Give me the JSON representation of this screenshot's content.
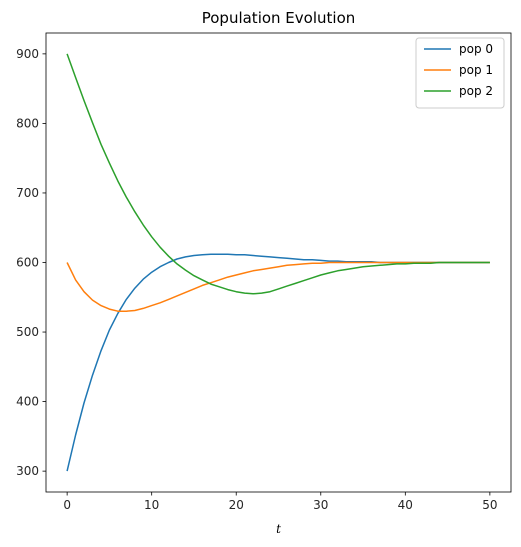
{
  "chart_data": {
    "type": "line",
    "title": "Population Evolution",
    "xlabel": "t",
    "ylabel": "",
    "xlim": [
      -2.5,
      52.5
    ],
    "ylim": [
      270,
      930
    ],
    "xticks": [
      0,
      10,
      20,
      30,
      40,
      50
    ],
    "yticks": [
      300,
      400,
      500,
      600,
      700,
      800,
      900
    ],
    "grid": false,
    "legend_position": "top-right",
    "series": [
      {
        "name": "pop 0",
        "color": "#1f77b4",
        "x": [
          0,
          1,
          2,
          3,
          4,
          5,
          6,
          7,
          8,
          9,
          10,
          11,
          12,
          13,
          14,
          15,
          16,
          17,
          18,
          19,
          20,
          21,
          22,
          23,
          24,
          25,
          26,
          27,
          28,
          29,
          30,
          31,
          32,
          33,
          34,
          35,
          36,
          37,
          38,
          39,
          40,
          41,
          42,
          43,
          44,
          45,
          46,
          47,
          48,
          49,
          50
        ],
        "y": [
          300,
          352,
          398,
          438,
          473,
          503,
          527,
          547,
          563,
          576,
          586,
          594,
          600,
          605,
          608,
          610,
          611,
          612,
          612,
          612,
          611,
          611,
          610,
          609,
          608,
          607,
          606,
          605,
          604,
          604,
          603,
          602,
          602,
          601,
          601,
          601,
          601,
          600,
          600,
          600,
          600,
          600,
          600,
          600,
          600,
          600,
          600,
          600,
          600,
          600,
          600
        ]
      },
      {
        "name": "pop 1",
        "color": "#ff7f0e",
        "x": [
          0,
          1,
          2,
          3,
          4,
          5,
          6,
          7,
          8,
          9,
          10,
          11,
          12,
          13,
          14,
          15,
          16,
          17,
          18,
          19,
          20,
          21,
          22,
          23,
          24,
          25,
          26,
          27,
          28,
          29,
          30,
          31,
          32,
          33,
          34,
          35,
          36,
          37,
          38,
          39,
          40,
          41,
          42,
          43,
          44,
          45,
          46,
          47,
          48,
          49,
          50
        ],
        "y": [
          600,
          575,
          558,
          546,
          538,
          533,
          530,
          530,
          531,
          534,
          538,
          542,
          547,
          552,
          557,
          562,
          567,
          571,
          575,
          579,
          582,
          585,
          588,
          590,
          592,
          594,
          596,
          597,
          598,
          599,
          599,
          600,
          600,
          600,
          600,
          600,
          600,
          600,
          600,
          600,
          600,
          600,
          600,
          600,
          600,
          600,
          600,
          600,
          600,
          600,
          600
        ]
      },
      {
        "name": "pop 2",
        "color": "#2ca02c",
        "x": [
          0,
          1,
          2,
          3,
          4,
          5,
          6,
          7,
          8,
          9,
          10,
          11,
          12,
          13,
          14,
          15,
          16,
          17,
          18,
          19,
          20,
          21,
          22,
          23,
          24,
          25,
          26,
          27,
          28,
          29,
          30,
          31,
          32,
          33,
          34,
          35,
          36,
          37,
          38,
          39,
          40,
          41,
          42,
          43,
          44,
          45,
          46,
          47,
          48,
          49,
          50
        ],
        "y": [
          900,
          866,
          833,
          801,
          770,
          743,
          717,
          694,
          673,
          654,
          637,
          622,
          609,
          598,
          589,
          581,
          575,
          569,
          565,
          561,
          558,
          556,
          555,
          556,
          558,
          562,
          566,
          570,
          574,
          578,
          582,
          585,
          588,
          590,
          592,
          594,
          595,
          596,
          597,
          598,
          598,
          599,
          599,
          599,
          600,
          600,
          600,
          600,
          600,
          600,
          600
        ]
      }
    ]
  }
}
